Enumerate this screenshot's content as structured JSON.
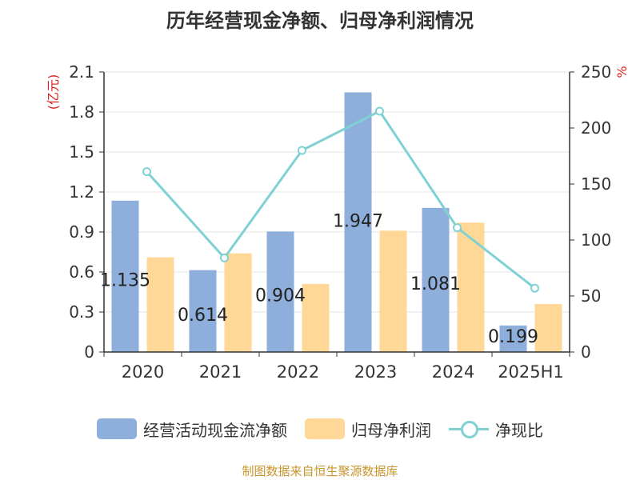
{
  "chart_data": {
    "type": "bar",
    "title": "历年经营现金净额、归母净利润情况",
    "categories": [
      "2020",
      "2021",
      "2022",
      "2023",
      "2024",
      "2025H1"
    ],
    "y_left": {
      "unit_label": "(亿元)",
      "range": [
        0,
        2.1
      ],
      "ticks": [
        "0",
        "0.3",
        "0.6",
        "0.9",
        "1.2",
        "1.5",
        "1.8",
        "2.1"
      ]
    },
    "y_right": {
      "unit_label": "%",
      "range": [
        0,
        250
      ],
      "ticks": [
        "0",
        "50",
        "100",
        "150",
        "200",
        "250"
      ]
    },
    "series": [
      {
        "name": "经营活动现金流净额",
        "type": "bar",
        "axis": "left",
        "color": "#8EAEDC",
        "values": [
          1.135,
          0.614,
          0.904,
          1.947,
          1.081,
          0.199
        ],
        "labels": [
          "1.135",
          "0.614",
          "0.904",
          "1.947",
          "1.081",
          "0.199"
        ]
      },
      {
        "name": "归母净利润",
        "type": "bar",
        "axis": "left",
        "color": "#FFD796",
        "values": [
          0.71,
          0.74,
          0.51,
          0.91,
          0.97,
          0.36
        ]
      },
      {
        "name": "净现比",
        "type": "line",
        "axis": "right",
        "color": "#7FD1D4",
        "values": [
          161,
          84,
          180,
          215,
          111,
          57
        ]
      }
    ],
    "grid": true,
    "legend_position": "bottom"
  },
  "source_text": "制图数据来自恒生聚源数据库"
}
